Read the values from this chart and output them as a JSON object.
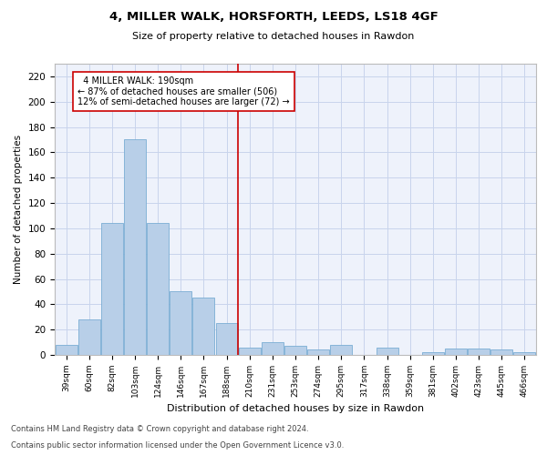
{
  "title1": "4, MILLER WALK, HORSFORTH, LEEDS, LS18 4GF",
  "title2": "Size of property relative to detached houses in Rawdon",
  "xlabel": "Distribution of detached houses by size in Rawdon",
  "ylabel": "Number of detached properties",
  "categories": [
    "39sqm",
    "60sqm",
    "82sqm",
    "103sqm",
    "124sqm",
    "146sqm",
    "167sqm",
    "188sqm",
    "210sqm",
    "231sqm",
    "253sqm",
    "274sqm",
    "295sqm",
    "317sqm",
    "338sqm",
    "359sqm",
    "381sqm",
    "402sqm",
    "423sqm",
    "445sqm",
    "466sqm"
  ],
  "values": [
    8,
    28,
    104,
    170,
    104,
    50,
    45,
    25,
    6,
    10,
    7,
    4,
    8,
    0,
    6,
    0,
    2,
    5,
    5,
    4,
    2
  ],
  "bar_color": "#b8cfe8",
  "bar_edge_color": "#7aadd4",
  "subject_line_idx": 7.5,
  "subject_label": "4 MILLER WALK: 190sqm",
  "pct_smaller": "87% of detached houses are smaller (506)",
  "pct_larger": "12% of semi-detached houses are larger (72)",
  "annotation_box_color": "#cc0000",
  "ylim": [
    0,
    230
  ],
  "yticks": [
    0,
    20,
    40,
    60,
    80,
    100,
    120,
    140,
    160,
    180,
    200,
    220
  ],
  "footnote1": "Contains HM Land Registry data © Crown copyright and database right 2024.",
  "footnote2": "Contains public sector information licensed under the Open Government Licence v3.0.",
  "bg_color": "#eef2fb",
  "grid_color": "#c8d4ec"
}
